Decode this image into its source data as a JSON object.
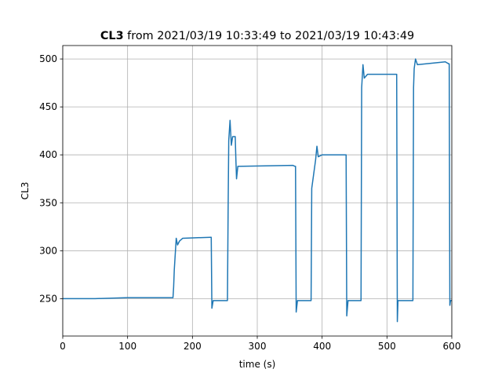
{
  "chart_data": {
    "type": "line",
    "title_bold": "CL3",
    "title": "from 2021/03/19 10:33:49 to 2021/03/19 10:43:49",
    "x_label": "time (s)",
    "y_label": "CL3",
    "xlim": [
      0,
      600
    ],
    "ylim": [
      211,
      514
    ],
    "xticks": [
      0,
      100,
      200,
      300,
      400,
      500,
      600
    ],
    "yticks": [
      250,
      300,
      350,
      400,
      450,
      500
    ],
    "grid": true,
    "series": [
      {
        "name": "CL3",
        "color": "#1f77b4",
        "x": [
          0,
          50,
          100,
          170,
          171,
          172,
          175,
          177,
          180,
          185,
          228,
          229,
          230,
          232,
          254,
          255,
          256,
          258,
          260,
          262,
          265,
          266,
          267,
          268,
          270,
          355,
          358,
          359,
          360,
          362,
          383,
          384,
          386,
          390,
          392,
          394,
          400,
          436,
          437,
          438,
          440,
          460,
          461,
          463,
          465,
          470,
          514,
          515,
          516,
          517,
          540,
          541,
          542,
          544,
          547,
          590,
          595,
          596,
          597,
          598,
          600
        ],
        "values": [
          250,
          250,
          251,
          251,
          262,
          280,
          313,
          306,
          310,
          313,
          314,
          314,
          240,
          248,
          248,
          340,
          415,
          436,
          410,
          419,
          419,
          419,
          395,
          375,
          388,
          389,
          388,
          388,
          236,
          248,
          248,
          365,
          375,
          395,
          409,
          398,
          400,
          400,
          400,
          232,
          248,
          248,
          470,
          494,
          480,
          484,
          484,
          484,
          226,
          248,
          248,
          470,
          490,
          500,
          494,
          497,
          495,
          495,
          243,
          248,
          248
        ]
      }
    ]
  }
}
